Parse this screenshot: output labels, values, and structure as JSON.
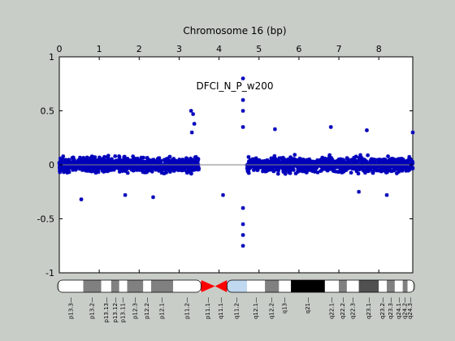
{
  "chart_data": {
    "type": "scatter",
    "title": "Chromosome 16 (bp)",
    "annotation": "DFCI_N_P_w200",
    "x_ticks": [
      "0",
      "1",
      "2",
      "3",
      "4",
      "5",
      "6",
      "7",
      "8"
    ],
    "y_ticks": [
      "1",
      "0.5",
      "0",
      "-0.5",
      "-1"
    ],
    "xlim": [
      0,
      8.85
    ],
    "ylim": [
      -1,
      1
    ],
    "grid": false,
    "baseline_y": 0,
    "marker_color": "#0000bb",
    "baseline_color": "#808080",
    "segments": [
      {
        "x_start": 0.0,
        "x_end": 3.5,
        "typical_low": -0.2,
        "typical_high": 0.22
      },
      {
        "x_start": 4.7,
        "x_end": 8.85,
        "typical_low": -0.2,
        "typical_high": 0.25
      }
    ],
    "notable_points": [
      {
        "x": 0.55,
        "y": -0.32
      },
      {
        "x": 1.65,
        "y": -0.28
      },
      {
        "x": 2.35,
        "y": -0.3
      },
      {
        "x": 3.3,
        "y": 0.5
      },
      {
        "x": 3.35,
        "y": 0.47
      },
      {
        "x": 3.38,
        "y": 0.38
      },
      {
        "x": 3.32,
        "y": 0.3
      },
      {
        "x": 4.1,
        "y": -0.28
      },
      {
        "x": 4.6,
        "y": 0.8
      },
      {
        "x": 4.6,
        "y": 0.6
      },
      {
        "x": 4.6,
        "y": 0.5
      },
      {
        "x": 4.6,
        "y": 0.35
      },
      {
        "x": 4.6,
        "y": -0.4
      },
      {
        "x": 4.6,
        "y": -0.55
      },
      {
        "x": 4.6,
        "y": -0.65
      },
      {
        "x": 4.6,
        "y": -0.75
      },
      {
        "x": 5.4,
        "y": 0.33
      },
      {
        "x": 6.8,
        "y": 0.35
      },
      {
        "x": 7.7,
        "y": 0.32
      },
      {
        "x": 8.85,
        "y": 0.3
      },
      {
        "x": 8.2,
        "y": -0.28
      },
      {
        "x": 7.5,
        "y": -0.25
      }
    ],
    "ideogram": {
      "bands": [
        {
          "name": "p13.3",
          "start": 0.0,
          "end": 0.6,
          "color": "#ffffff"
        },
        {
          "name": "p13.2",
          "start": 0.6,
          "end": 1.05,
          "color": "#808080"
        },
        {
          "name": "p13.13",
          "start": 1.05,
          "end": 1.3,
          "color": "#ffffff"
        },
        {
          "name": "p13.12",
          "start": 1.3,
          "end": 1.5,
          "color": "#808080"
        },
        {
          "name": "p13.11",
          "start": 1.5,
          "end": 1.7,
          "color": "#ffffff"
        },
        {
          "name": "p12.3",
          "start": 1.7,
          "end": 2.1,
          "color": "#808080"
        },
        {
          "name": "p12.2",
          "start": 2.1,
          "end": 2.3,
          "color": "#ffffff"
        },
        {
          "name": "p12.1",
          "start": 2.3,
          "end": 2.85,
          "color": "#808080"
        },
        {
          "name": "p11.2",
          "start": 2.85,
          "end": 3.55,
          "color": "#ffffff"
        },
        {
          "name": "p11.1",
          "start": 3.55,
          "end": 3.9,
          "color": "#ff0000",
          "centromere": "p"
        },
        {
          "name": "q11.1",
          "start": 3.9,
          "end": 4.2,
          "color": "#ff0000",
          "centromere": "q"
        },
        {
          "name": "q11.2",
          "start": 4.2,
          "end": 4.7,
          "color": "#c0d8f0"
        },
        {
          "name": "q12.1",
          "start": 4.7,
          "end": 5.15,
          "color": "#ffffff"
        },
        {
          "name": "q12.2",
          "start": 5.15,
          "end": 5.5,
          "color": "#808080"
        },
        {
          "name": "q13",
          "start": 5.5,
          "end": 5.8,
          "color": "#ffffff"
        },
        {
          "name": "q21",
          "start": 5.8,
          "end": 6.65,
          "color": "#000000"
        },
        {
          "name": "q22.1",
          "start": 6.65,
          "end": 7.0,
          "color": "#ffffff"
        },
        {
          "name": "q22.2",
          "start": 7.0,
          "end": 7.2,
          "color": "#808080"
        },
        {
          "name": "q22.3",
          "start": 7.2,
          "end": 7.5,
          "color": "#ffffff"
        },
        {
          "name": "q23.1",
          "start": 7.5,
          "end": 8.0,
          "color": "#505050"
        },
        {
          "name": "q23.2",
          "start": 8.0,
          "end": 8.2,
          "color": "#ffffff"
        },
        {
          "name": "q23.3",
          "start": 8.2,
          "end": 8.4,
          "color": "#808080"
        },
        {
          "name": "q24.1",
          "start": 8.4,
          "end": 8.6,
          "color": "#ffffff"
        },
        {
          "name": "q24.2",
          "start": 8.6,
          "end": 8.72,
          "color": "#808080"
        },
        {
          "name": "q24.3",
          "start": 8.72,
          "end": 8.85,
          "color": "#ffffff"
        }
      ]
    }
  }
}
